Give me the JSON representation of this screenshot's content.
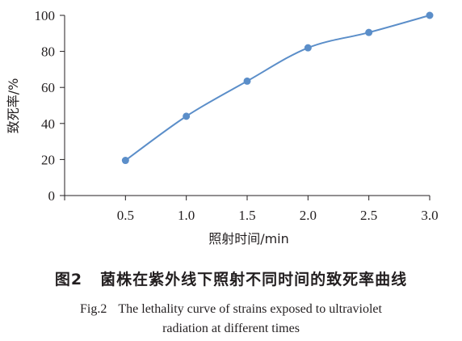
{
  "chart_data": {
    "type": "line",
    "xlabel": "照射时间/min",
    "ylabel": "致死率/%",
    "x": [
      "0.5",
      "1.0",
      "1.5",
      "2.0",
      "2.5",
      "3.0"
    ],
    "series": [
      {
        "values": [
          19.5,
          44,
          63.5,
          82,
          90.5,
          100
        ],
        "color": "#5b8ec9"
      }
    ],
    "ylim": [
      0,
      100
    ],
    "yticks": [
      0,
      20,
      40,
      60,
      80,
      100
    ],
    "grid": false,
    "smooth": true
  },
  "caption": {
    "cn_fig": "图2",
    "cn_title": "菌株在紫外线下照射不同时间的致死率曲线",
    "en_fig": "Fig.2",
    "en_line1": "The lethality curve of strains exposed to ultraviolet",
    "en_line2": "radiation at different times"
  }
}
